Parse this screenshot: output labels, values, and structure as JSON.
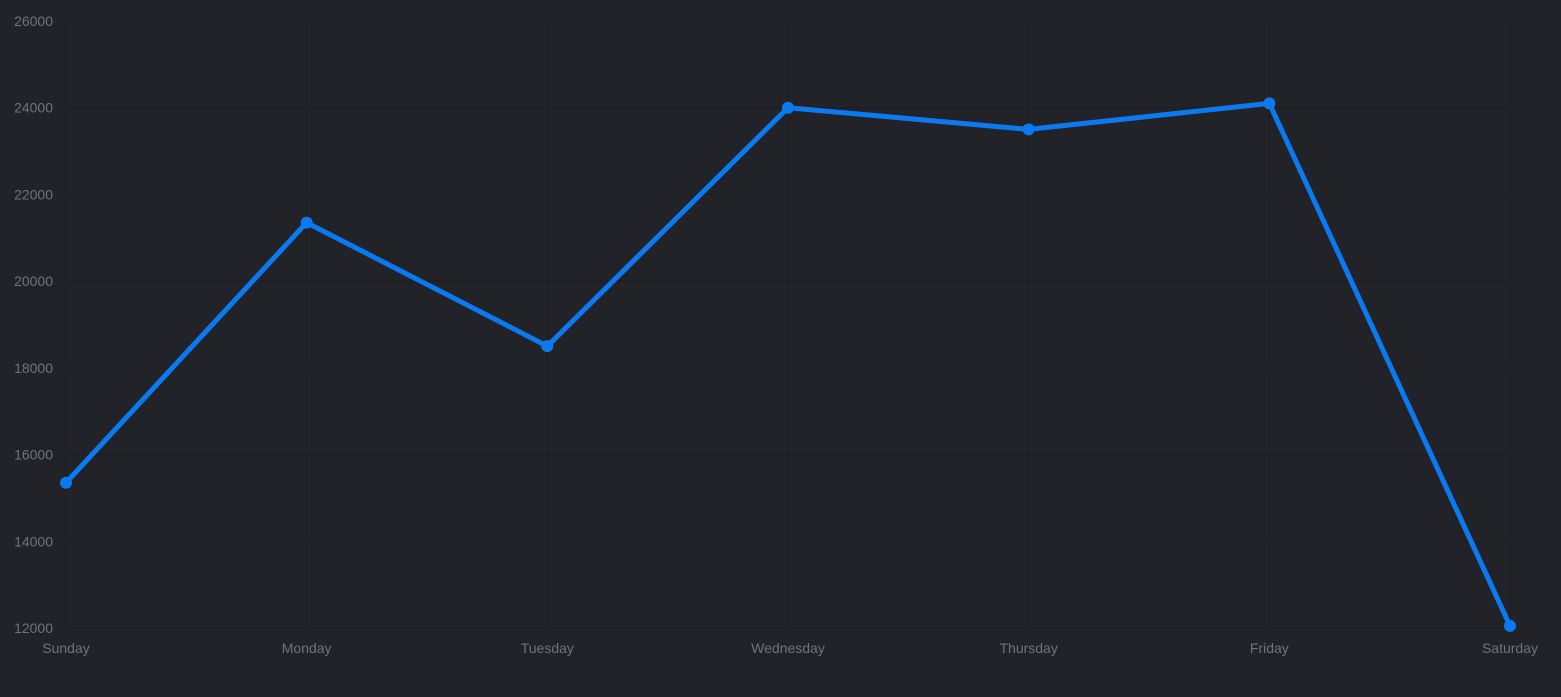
{
  "chart_data": {
    "type": "line",
    "title": "",
    "xlabel": "",
    "ylabel": "",
    "categories": [
      "Sunday",
      "Monday",
      "Tuesday",
      "Wednesday",
      "Thursday",
      "Friday",
      "Saturday"
    ],
    "series": [
      {
        "values": [
          15350,
          21350,
          18500,
          24000,
          23500,
          24100,
          12050
        ]
      }
    ],
    "ylim": [
      12000,
      26000
    ],
    "yticks": [
      12000,
      14000,
      16000,
      18000,
      20000,
      22000,
      24000,
      26000
    ],
    "grid": true,
    "legend": "none",
    "colors": {
      "line": "#0b7af0",
      "background": "#222328",
      "grid": "#1b1c20",
      "tick_text": "#6f737a"
    }
  }
}
